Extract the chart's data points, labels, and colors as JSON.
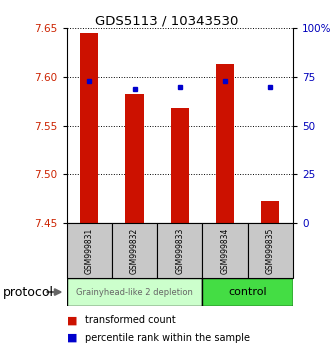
{
  "title": "GDS5113 / 10343530",
  "samples": [
    "GSM999831",
    "GSM999832",
    "GSM999833",
    "GSM999834",
    "GSM999835"
  ],
  "red_bar_bottom": [
    7.45,
    7.45,
    7.45,
    7.45,
    7.45
  ],
  "red_bar_top": [
    7.645,
    7.583,
    7.568,
    7.613,
    7.473
  ],
  "blue_dot_y": [
    7.596,
    7.588,
    7.59,
    7.596,
    7.59
  ],
  "ylim": [
    7.45,
    7.65
  ],
  "yticks_left": [
    7.45,
    7.5,
    7.55,
    7.6,
    7.65
  ],
  "yticks_right": [
    0,
    25,
    50,
    75,
    100
  ],
  "ytick_labels_right": [
    "0",
    "25",
    "50",
    "75",
    "100%"
  ],
  "group1_samples": [
    0,
    1,
    2
  ],
  "group2_samples": [
    3,
    4
  ],
  "group1_label": "Grainyhead-like 2 depletion",
  "group2_label": "control",
  "group1_bg": "#ccffcc",
  "group2_bg": "#44dd44",
  "protocol_label": "protocol",
  "legend_red_label": "transformed count",
  "legend_blue_label": "percentile rank within the sample",
  "bar_color": "#cc1100",
  "dot_color": "#0000cc",
  "bar_width": 0.4,
  "axis_color_left": "#cc2200",
  "axis_color_right": "#0000bb",
  "title_fontsize": 9.5,
  "tick_fontsize": 7.5,
  "sample_fontsize": 5.5,
  "group_fontsize_1": 6,
  "group_fontsize_2": 8,
  "legend_fontsize": 7,
  "protocol_fontsize": 9
}
